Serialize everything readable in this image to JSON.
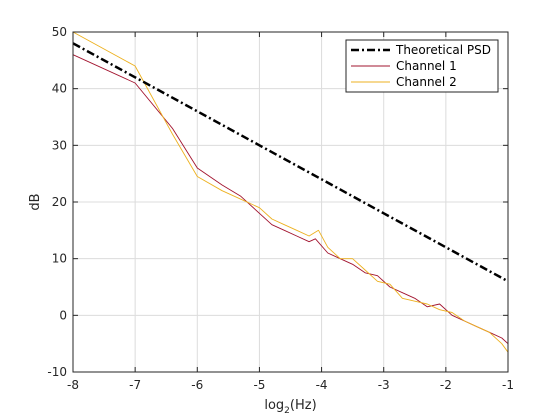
{
  "chart_data": {
    "type": "line",
    "title": "",
    "xlabel": "log",
    "xlabel_subscript": "2",
    "xlabel_suffix": "(Hz)",
    "ylabel": "dB",
    "xlim": [
      -8,
      -1
    ],
    "ylim": [
      -10,
      50
    ],
    "xticks": [
      -8,
      -7,
      -6,
      -5,
      -4,
      -3,
      -2,
      -1
    ],
    "yticks": [
      -10,
      0,
      10,
      20,
      30,
      40,
      50
    ],
    "grid": true,
    "legend_position": "top-right",
    "colors": {
      "theoretical": "#000000",
      "channel1": "#a2142f",
      "channel2": "#edb120",
      "grid": "#dcdcdc",
      "axis": "#262626"
    },
    "series": [
      {
        "name": "Theoretical PSD",
        "style": "dash-dot",
        "x": [
          -8,
          -7,
          -6,
          -5,
          -4,
          -3,
          -2,
          -1
        ],
        "y": [
          48,
          42,
          36,
          30,
          24,
          18,
          12,
          6
        ]
      },
      {
        "name": "Channel 1",
        "style": "solid",
        "x": [
          -8,
          -7,
          -6.4,
          -6.0,
          -5.6,
          -5.3,
          -5.0,
          -4.8,
          -4.6,
          -4.4,
          -4.2,
          -4.1,
          -3.9,
          -3.7,
          -3.5,
          -3.3,
          -3.1,
          -2.9,
          -2.7,
          -2.5,
          -2.3,
          -2.1,
          -1.9,
          -1.7,
          -1.5,
          -1.3,
          -1.1,
          -1
        ],
        "y": [
          46,
          41,
          33,
          26,
          23,
          21,
          18,
          16,
          15,
          14,
          13,
          13.5,
          11,
          10,
          9,
          7.5,
          7,
          5,
          4,
          3,
          1.5,
          2,
          0,
          -1,
          -2,
          -3,
          -4,
          -5
        ]
      },
      {
        "name": "Channel 2",
        "style": "solid",
        "x": [
          -8,
          -7,
          -6.4,
          -6.0,
          -5.6,
          -5.3,
          -5.0,
          -4.8,
          -4.6,
          -4.4,
          -4.2,
          -4.05,
          -3.9,
          -3.7,
          -3.5,
          -3.3,
          -3.1,
          -2.9,
          -2.7,
          -2.5,
          -2.3,
          -2.1,
          -1.9,
          -1.7,
          -1.5,
          -1.3,
          -1.1,
          -1
        ],
        "y": [
          50,
          44,
          32,
          24.5,
          22,
          20.5,
          19,
          17,
          16,
          15,
          14,
          15,
          12,
          10,
          10,
          8,
          6,
          5.5,
          3,
          2.5,
          2,
          1,
          0.5,
          -1,
          -2,
          -3,
          -5,
          -6.5
        ]
      }
    ]
  }
}
